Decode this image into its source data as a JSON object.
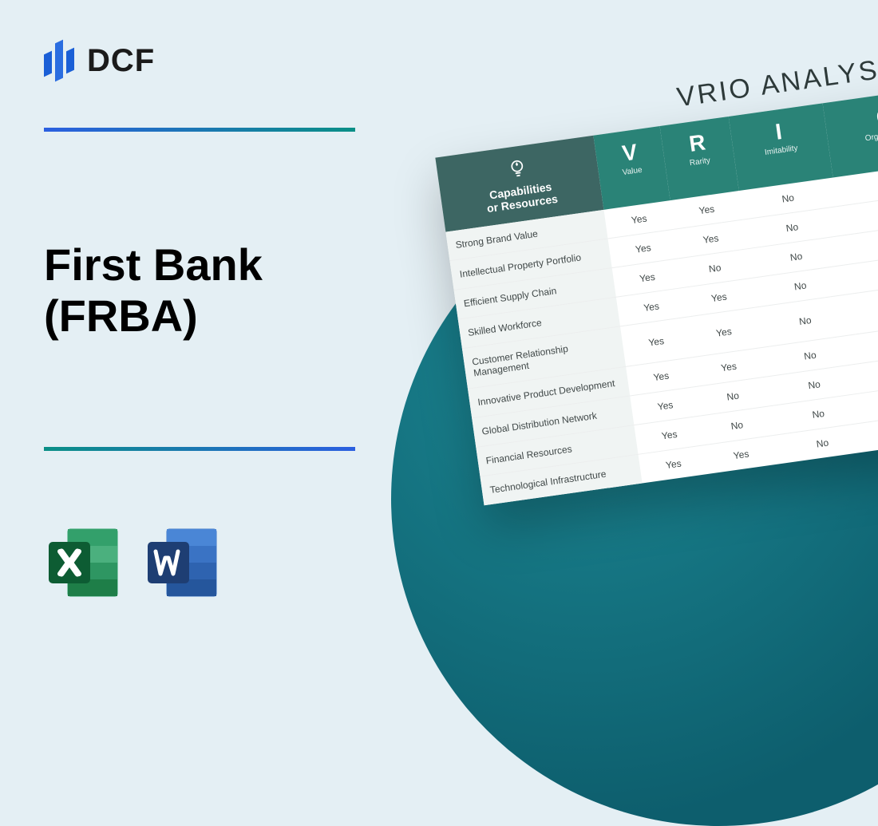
{
  "logo": {
    "text": "DCF"
  },
  "title": "First Bank\n(FRBA)",
  "icons": {
    "excel_color": "#1e7e48",
    "excel_dark": "#0d5c33",
    "word_color": "#2a5699",
    "word_dark": "#1e3e73"
  },
  "colors": {
    "background": "#e4eff4",
    "circle_from": "#1c8793",
    "circle_to": "#0d5e6d",
    "hr_blue": "#2b5fe0",
    "hr_teal": "#0a8f86",
    "table_header_bg": "#2a8377",
    "table_cap_bg": "#3d6663",
    "table_row_cap_bg": "#f0f4f3",
    "table_border": "#eceeee"
  },
  "vrio": {
    "title": "VRIO ANALYSIS",
    "cap_header": "Capabilities\nor Resources",
    "columns": [
      {
        "big": "V",
        "sub": "Value"
      },
      {
        "big": "R",
        "sub": "Rarity"
      },
      {
        "big": "I",
        "sub": "Imitability"
      },
      {
        "big": "O",
        "sub": "Organization"
      }
    ],
    "rows": [
      {
        "cap": "Strong Brand Value",
        "v": "Yes",
        "r": "Yes",
        "i": "No",
        "o": ""
      },
      {
        "cap": "Intellectual Property Portfolio",
        "v": "Yes",
        "r": "Yes",
        "i": "No",
        "o": ""
      },
      {
        "cap": "Efficient Supply Chain",
        "v": "Yes",
        "r": "No",
        "i": "No",
        "o": ""
      },
      {
        "cap": "Skilled Workforce",
        "v": "Yes",
        "r": "Yes",
        "i": "No",
        "o": ""
      },
      {
        "cap": "Customer Relationship Management",
        "v": "Yes",
        "r": "Yes",
        "i": "No",
        "o": ""
      },
      {
        "cap": "Innovative Product Development",
        "v": "Yes",
        "r": "Yes",
        "i": "No",
        "o": ""
      },
      {
        "cap": "Global Distribution Network",
        "v": "Yes",
        "r": "No",
        "i": "No",
        "o": ""
      },
      {
        "cap": "Financial Resources",
        "v": "Yes",
        "r": "No",
        "i": "No",
        "o": ""
      },
      {
        "cap": "Technological Infrastructure",
        "v": "Yes",
        "r": "Yes",
        "i": "No",
        "o": ""
      }
    ]
  }
}
